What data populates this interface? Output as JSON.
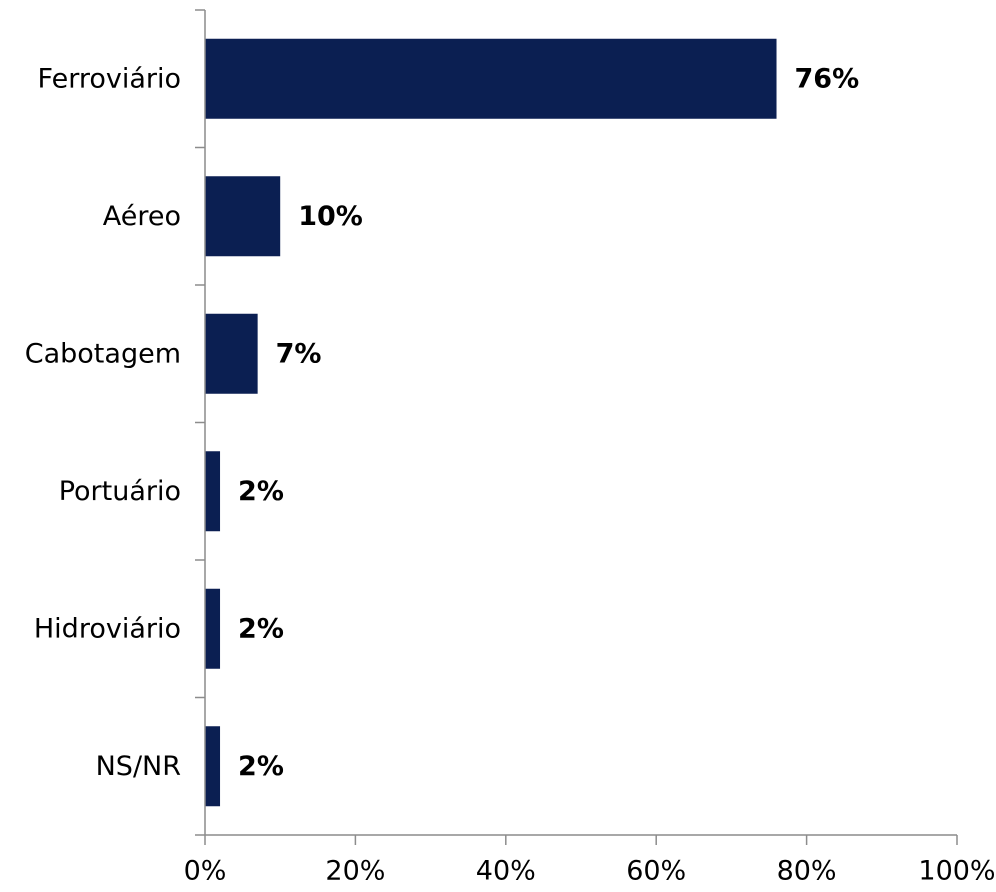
{
  "chart_data": {
    "type": "bar",
    "orientation": "horizontal",
    "categories": [
      "Ferroviário",
      "Aéreo",
      "Cabotagem",
      "Portuário",
      "Hidroviário",
      "NS/NR"
    ],
    "values": [
      76,
      10,
      7,
      2,
      2,
      2
    ],
    "value_labels": [
      "76%",
      "10%",
      "7%",
      "2%",
      "2%",
      "2%"
    ],
    "xlim": [
      0,
      100
    ],
    "x_ticks": [
      0,
      20,
      40,
      60,
      80,
      100
    ],
    "x_tick_labels": [
      "0%",
      "20%",
      "40%",
      "60%",
      "80%",
      "100%"
    ],
    "title": "",
    "xlabel": "",
    "ylabel": "",
    "grid": false,
    "legend": "none",
    "bar_color": "#0b1f52"
  }
}
